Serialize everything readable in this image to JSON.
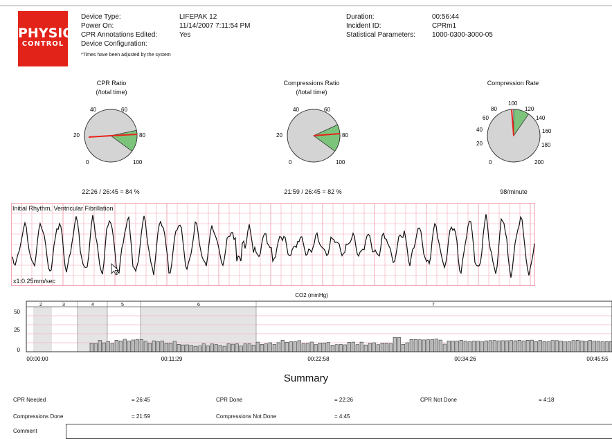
{
  "logo": {
    "line1": "PHYSIO",
    "line2": "CONTROL"
  },
  "header": {
    "device_type_label": "Device Type:",
    "device_type_value": "LIFEPAK 12",
    "power_on_label": "Power On:",
    "power_on_value": "11/14/2007 7:11:54 PM",
    "cpr_annot_label": "CPR Annotations Edited:",
    "cpr_annot_value": "Yes",
    "device_config_label": "Device Configuration:",
    "note": "*Times have been adjusted by the system",
    "duration_label": "Duration:",
    "duration_value": "00:56:44",
    "incident_label": "Incident ID:",
    "incident_value": "CPRm1",
    "stat_label": "Statistical Parameters:",
    "stat_value": "1000-0300-3000-05"
  },
  "gauges": [
    {
      "title": "CPR Ratio",
      "subtitle": "(/total time)",
      "ticks": [
        "0",
        "20",
        "40",
        "60",
        "80",
        "100"
      ],
      "value_text": "22:26 / 26:45 = 84 %"
    },
    {
      "title": "Compressions Ratio",
      "subtitle": "(/total time)",
      "ticks": [
        "0",
        "20",
        "40",
        "60",
        "80",
        "100"
      ],
      "value_text": "21:59 / 26:45 = 82 %"
    },
    {
      "title": "Compression Rate",
      "subtitle": "",
      "ticks": [
        "0",
        "20",
        "40",
        "60",
        "80",
        "100",
        "120",
        "140",
        "160",
        "180",
        "200"
      ],
      "value_text": "98/minute"
    }
  ],
  "ecg": {
    "title": "Initial Rhythm, Ventricular Fibrillation",
    "speed": "x1:0.25mm/sec"
  },
  "co2": {
    "title": "CO2 (mmHg)",
    "y_ticks": [
      "50",
      "25",
      "0"
    ],
    "x_ticks": [
      "00:00:00",
      "00:11:29",
      "00:22:58",
      "00:34:26",
      "00:45:55"
    ],
    "segments": [
      "2",
      "3",
      "4",
      "5",
      "6",
      "7"
    ]
  },
  "summary": {
    "title": "Summary",
    "cpr_needed_label": "CPR Needed",
    "cpr_needed_value": "= 26:45",
    "cpr_done_label": "CPR Done",
    "cpr_done_value": "= 22:26",
    "cpr_not_done_label": "CPR Not Done",
    "cpr_not_done_value": "= 4:18",
    "comp_done_label": "Compressions Done",
    "comp_done_value": "= 21:59",
    "comp_not_done_label": "Compressions Not Done",
    "comp_not_done_value": "= 4:45",
    "comment_label": "Comment",
    "comment_value": ""
  },
  "colors": {
    "brand_red": "#e2231a",
    "ecg_grid": "#f2a6b4",
    "needle": "#e8231a",
    "gauge_fill": "#d4d4d4",
    "gauge_ok": "#7cc47c"
  }
}
